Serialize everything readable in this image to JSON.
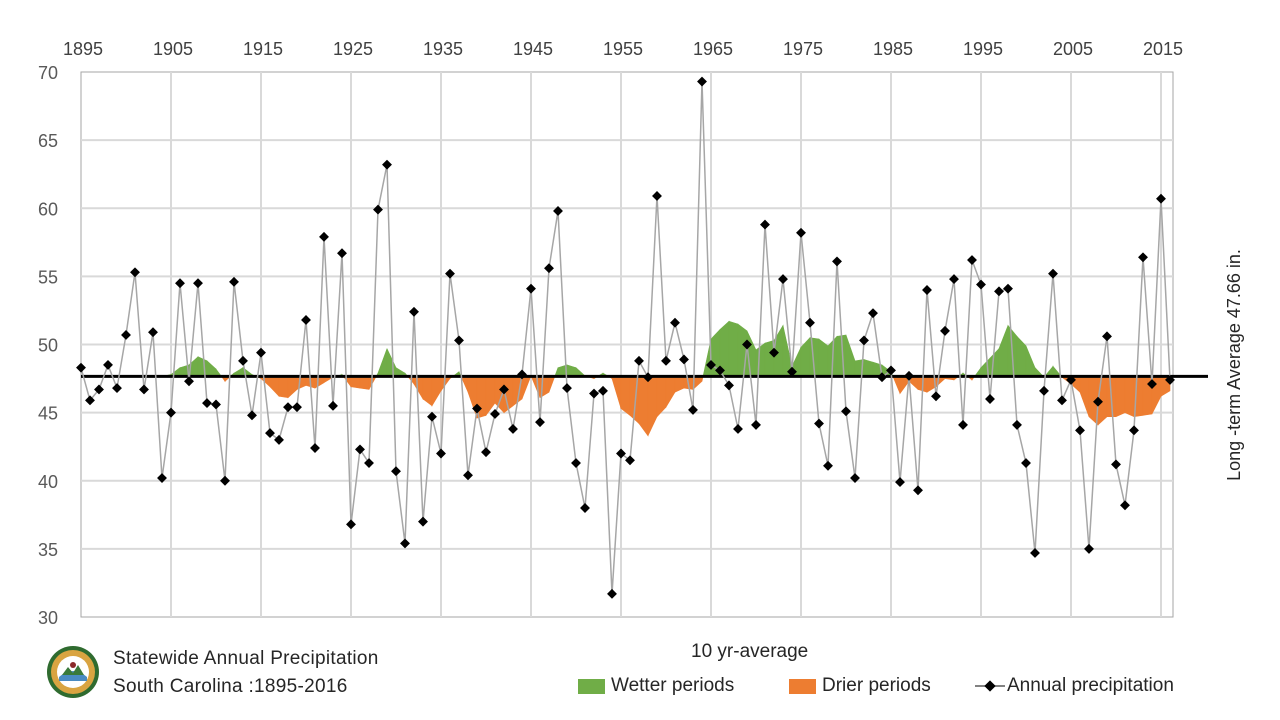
{
  "chart_data": {
    "type": "line",
    "x_tick_labels": [
      "1895",
      "1905",
      "1915",
      "1925",
      "1935",
      "1945",
      "1955",
      "1965",
      "1975",
      "1985",
      "1995",
      "2005",
      "2015"
    ],
    "y_tick_labels": [
      "70",
      "65",
      "60",
      "55",
      "50",
      "45",
      "40",
      "35",
      "30"
    ],
    "ylim": [
      30,
      70
    ],
    "xlim": [
      1895,
      2016
    ],
    "grid": true,
    "long_term_average": 47.66,
    "average_label": "Long -term Average 47.66 in.",
    "series": [
      {
        "name": "Annual precipitation",
        "color": "#a6a6a6",
        "marker_color": "#000000",
        "x": [
          1895,
          1896,
          1897,
          1898,
          1899,
          1900,
          1901,
          1902,
          1903,
          1904,
          1905,
          1906,
          1907,
          1908,
          1909,
          1910,
          1911,
          1912,
          1913,
          1914,
          1915,
          1916,
          1917,
          1918,
          1919,
          1920,
          1921,
          1922,
          1923,
          1924,
          1925,
          1926,
          1927,
          1928,
          1929,
          1930,
          1931,
          1932,
          1933,
          1934,
          1935,
          1936,
          1937,
          1938,
          1939,
          1940,
          1941,
          1942,
          1943,
          1944,
          1945,
          1946,
          1947,
          1948,
          1949,
          1950,
          1951,
          1952,
          1953,
          1954,
          1955,
          1956,
          1957,
          1958,
          1959,
          1960,
          1961,
          1962,
          1963,
          1964,
          1965,
          1966,
          1967,
          1968,
          1969,
          1970,
          1971,
          1972,
          1973,
          1974,
          1975,
          1976,
          1977,
          1978,
          1979,
          1980,
          1981,
          1982,
          1983,
          1984,
          1985,
          1986,
          1987,
          1988,
          1989,
          1990,
          1991,
          1992,
          1993,
          1994,
          1995,
          1996,
          1997,
          1998,
          1999,
          2000,
          2001,
          2002,
          2003,
          2004,
          2005,
          2006,
          2007,
          2008,
          2009,
          2010,
          2011,
          2012,
          2013,
          2014,
          2015,
          2016
        ],
        "values": [
          48.3,
          45.9,
          46.7,
          48.5,
          46.8,
          50.7,
          55.3,
          46.7,
          50.9,
          40.2,
          45.0,
          54.5,
          47.3,
          54.5,
          45.7,
          45.6,
          40.0,
          54.6,
          48.8,
          44.8,
          49.4,
          43.5,
          43.0,
          45.4,
          45.4,
          51.8,
          42.4,
          57.9,
          45.5,
          56.7,
          36.8,
          42.3,
          41.3,
          59.9,
          63.2,
          40.7,
          35.4,
          52.4,
          37.0,
          44.7,
          42.0,
          55.2,
          50.3,
          40.4,
          45.3,
          42.1,
          44.9,
          46.7,
          43.8,
          47.8,
          54.1,
          44.3,
          55.6,
          59.8,
          46.8,
          41.3,
          38.0,
          46.4,
          46.6,
          31.7,
          42.0,
          41.5,
          48.8,
          47.6,
          60.9,
          48.8,
          51.6,
          48.9,
          45.2,
          69.3,
          48.5,
          48.1,
          47.0,
          43.8,
          50.0,
          44.1,
          58.8,
          49.4,
          54.8,
          48.0,
          58.2,
          51.6,
          44.2,
          41.1,
          56.1,
          45.1,
          40.2,
          50.3,
          52.3,
          47.6,
          48.1,
          39.9,
          47.7,
          39.3,
          54.0,
          46.2,
          51.0,
          54.8,
          44.1,
          56.2,
          54.4,
          46.0,
          53.9,
          54.1,
          44.1,
          41.3,
          34.7,
          46.6,
          55.2,
          45.9,
          47.4,
          43.7,
          35.0,
          45.8,
          50.6,
          41.2,
          38.2,
          43.7,
          56.4,
          47.1,
          60.7,
          47.4
        ]
      },
      {
        "name": "10 yr-average",
        "x": [
          1895,
          1896,
          1897,
          1898,
          1899,
          1900,
          1901,
          1902,
          1903,
          1904,
          1905,
          1906,
          1907,
          1908,
          1909,
          1910,
          1911,
          1912,
          1913,
          1914,
          1915,
          1916,
          1917,
          1918,
          1919,
          1920,
          1921,
          1922,
          1923,
          1924,
          1925,
          1926,
          1927,
          1928,
          1929,
          1930,
          1931,
          1932,
          1933,
          1934,
          1935,
          1936,
          1937,
          1938,
          1939,
          1940,
          1941,
          1942,
          1943,
          1944,
          1945,
          1946,
          1947,
          1948,
          1949,
          1950,
          1951,
          1952,
          1953,
          1954,
          1955,
          1956,
          1957,
          1958,
          1959,
          1960,
          1961,
          1962,
          1963,
          1964,
          1965,
          1966,
          1967,
          1968,
          1969,
          1970,
          1971,
          1972,
          1973,
          1974,
          1975,
          1976,
          1977,
          1978,
          1979,
          1980,
          1981,
          1982,
          1983,
          1984,
          1985,
          1986,
          1987,
          1988,
          1989,
          1990,
          1991,
          1992,
          1993,
          1994,
          1995,
          1996,
          1997,
          1998,
          1999,
          2000,
          2001,
          2002,
          2003,
          2004,
          2005,
          2006,
          2007,
          2008,
          2009,
          2010,
          2011,
          2012,
          2013,
          2014,
          2015,
          2016
        ],
        "values": [
          47.66,
          47.66,
          47.66,
          47.66,
          47.66,
          47.66,
          47.66,
          47.66,
          47.66,
          47.66,
          47.8,
          48.3,
          48.5,
          49.1,
          48.8,
          48.2,
          47.3,
          47.9,
          48.3,
          47.8,
          47.5,
          46.9,
          46.2,
          46.1,
          46.7,
          47.0,
          46.8,
          47.2,
          47.6,
          47.8,
          46.9,
          46.8,
          46.7,
          47.9,
          49.7,
          48.3,
          47.9,
          47.1,
          46.0,
          45.5,
          46.6,
          47.5,
          48.0,
          46.5,
          44.6,
          44.8,
          45.7,
          45.0,
          45.5,
          46.0,
          47.7,
          46.1,
          46.5,
          48.3,
          48.5,
          48.3,
          47.7,
          47.5,
          47.9,
          47.5,
          45.3,
          44.8,
          44.2,
          43.3,
          44.7,
          45.4,
          46.5,
          46.8,
          46.7,
          47.3,
          50.4,
          51.1,
          51.7,
          51.5,
          51.0,
          49.6,
          50.1,
          50.3,
          51.4,
          48.4,
          49.8,
          50.5,
          50.4,
          49.9,
          50.6,
          50.7,
          48.8,
          48.9,
          48.7,
          48.5,
          48.0,
          46.4,
          47.3,
          46.7,
          46.5,
          46.9,
          47.5,
          47.4,
          47.9,
          47.4,
          48.3,
          49.0,
          49.7,
          51.4,
          50.6,
          49.9,
          48.3,
          47.6,
          48.4,
          47.6,
          47.1,
          46.5,
          44.7,
          44.1,
          44.7,
          44.7,
          45.0,
          44.7,
          44.8,
          44.9,
          46.2,
          46.6
        ]
      }
    ],
    "colors": {
      "wetter": "#70ad47",
      "drier": "#ed7d31",
      "average_line": "#000000",
      "grid": "#d9d9d9"
    }
  },
  "footer": {
    "title_line1": "Statewide Annual Precipitation",
    "title_line2": "South Carolina :1895-2016"
  },
  "legend": {
    "heading": "10 yr-average",
    "wetter": "Wetter periods",
    "drier": "Drier periods",
    "annual": "Annual precipitation"
  },
  "logo_icon": "state-climatology-seal-icon"
}
